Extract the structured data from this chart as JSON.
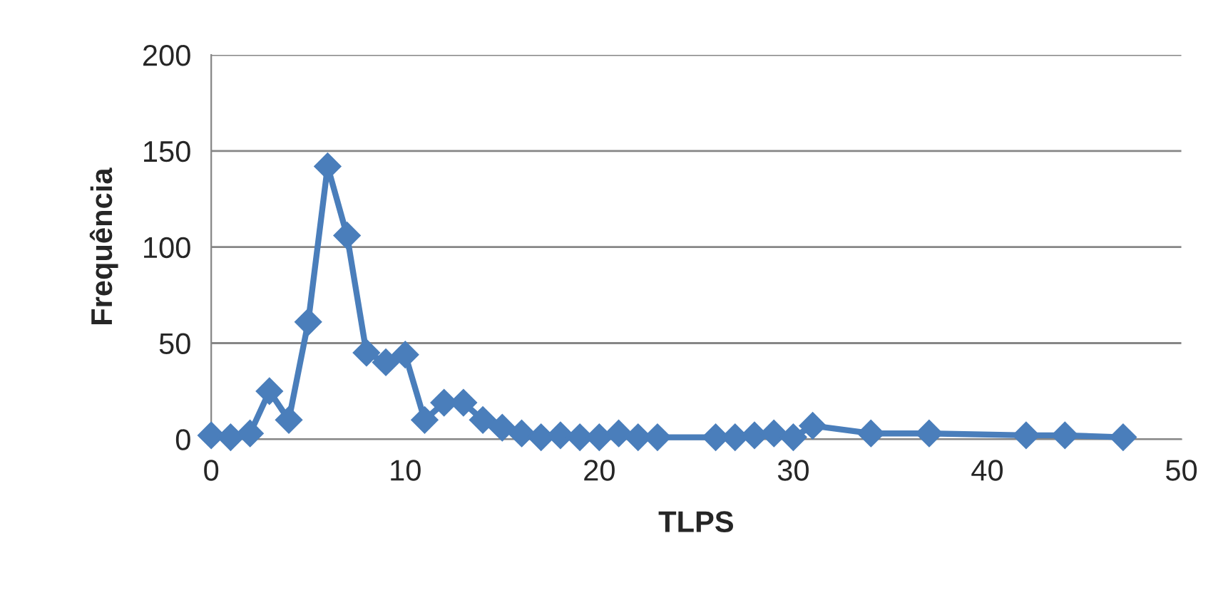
{
  "chart_data": {
    "type": "line",
    "xlabel": "TLPS",
    "ylabel": "Frequência",
    "x": [
      0,
      1,
      2,
      3,
      4,
      5,
      6,
      7,
      8,
      9,
      10,
      11,
      12,
      13,
      14,
      15,
      16,
      17,
      18,
      19,
      20,
      21,
      22,
      23,
      26,
      27,
      28,
      29,
      30,
      31,
      34,
      37,
      42,
      44,
      47
    ],
    "series": [
      {
        "color": "#4a7ebb",
        "values": [
          2,
          1,
          3,
          25,
          10,
          61,
          142,
          106,
          45,
          40,
          44,
          10,
          19,
          19,
          10,
          6,
          3,
          1,
          2,
          1,
          1,
          3,
          1,
          1,
          1,
          1,
          2,
          3,
          1,
          7,
          3,
          3,
          2,
          2,
          1
        ]
      }
    ],
    "xlim": [
      0,
      50
    ],
    "xticks": [
      0,
      10,
      20,
      30,
      40,
      50
    ],
    "ylim": [
      0,
      200
    ],
    "yticks": [
      0,
      50,
      100,
      150,
      200
    ],
    "grid": "y",
    "marker": "diamond",
    "line_style": "solid",
    "legend": false
  }
}
